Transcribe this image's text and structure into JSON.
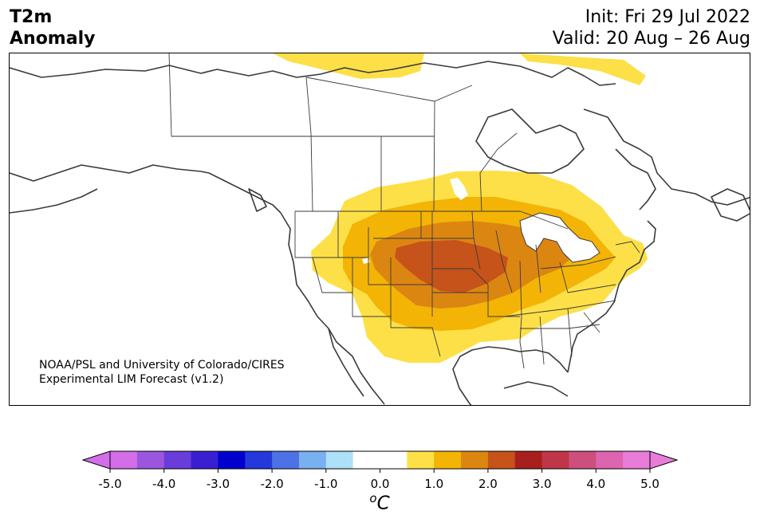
{
  "header": {
    "title_line1": "T2m",
    "title_line2": "Anomaly",
    "init": "Init: Fri 29 Jul 2022",
    "valid": "Valid: 20 Aug – 26 Aug"
  },
  "credit": {
    "line1": "NOAA/PSL and University of Colorado/CIRES",
    "line2": "Experimental LIM Forecast (v1.2)"
  },
  "colorbar": {
    "unit_base": "C",
    "unit_sup": "o",
    "ticks": [
      "-5.0",
      "-4.0",
      "-3.0",
      "-2.0",
      "-1.0",
      "0.0",
      "1.0",
      "2.0",
      "3.0",
      "4.0",
      "5.0"
    ],
    "colors": [
      "#d36ee8",
      "#9b56df",
      "#6a3cd9",
      "#3a1fd2",
      "#0000cd",
      "#2438dc",
      "#4d72e6",
      "#78b0f0",
      "#ade0f9",
      "#ffffff",
      "#ffffff",
      "#fde047",
      "#f3b406",
      "#dc8612",
      "#c5531a",
      "#a8201e",
      "#bf3648",
      "#cc4f7d",
      "#dd65b0",
      "#e97bd9"
    ],
    "under_color": "#d36ee8",
    "over_color": "#e97bd9"
  },
  "map_colors": {
    "anom_1": "#fde047",
    "anom_2": "#f3b406",
    "anom_3": "#dc8612",
    "anom_4": "#c5531a",
    "coast": "#3a3a3a"
  }
}
